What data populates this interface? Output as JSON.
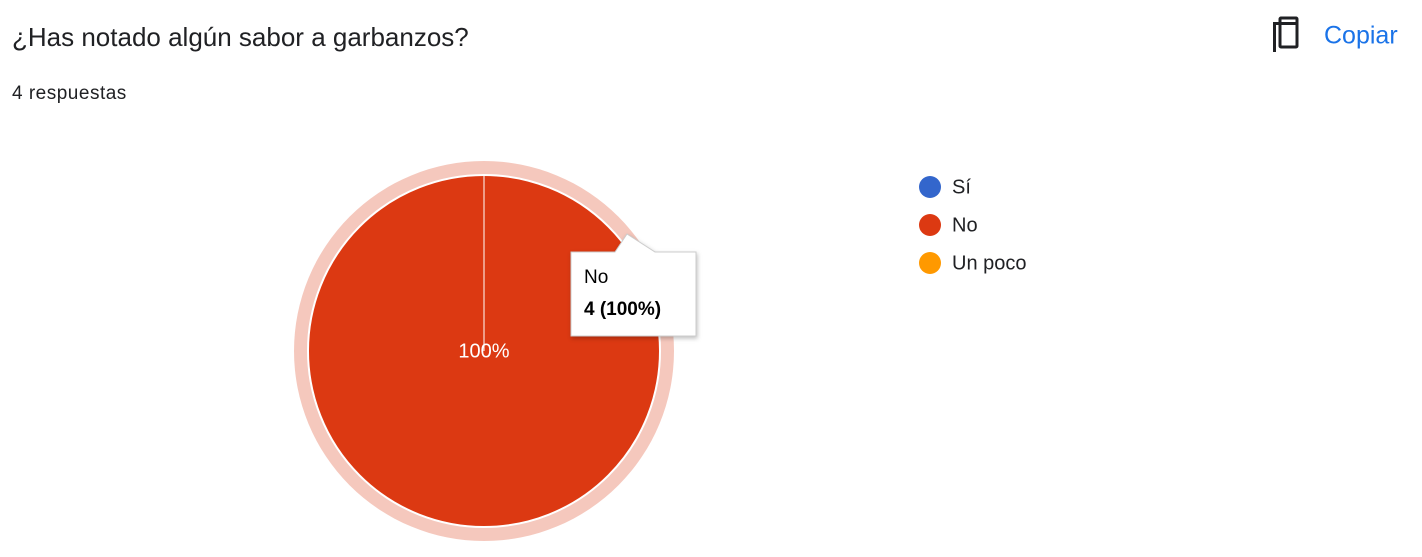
{
  "header": {
    "title": "¿Has notado algún sabor a garbanzos?",
    "subtitle": "4 respuestas",
    "copy_button": "Copiar"
  },
  "chart_data": {
    "type": "pie",
    "categories": [
      "Sí",
      "No",
      "Un poco"
    ],
    "values": [
      0,
      100,
      0
    ],
    "value_labels": [
      null,
      "100%",
      null
    ],
    "colors": [
      "#3366cc",
      "#dc3912",
      "#ff9900"
    ],
    "legend": "right",
    "tooltip": {
      "title": "No",
      "text": "4 (100%)"
    }
  }
}
